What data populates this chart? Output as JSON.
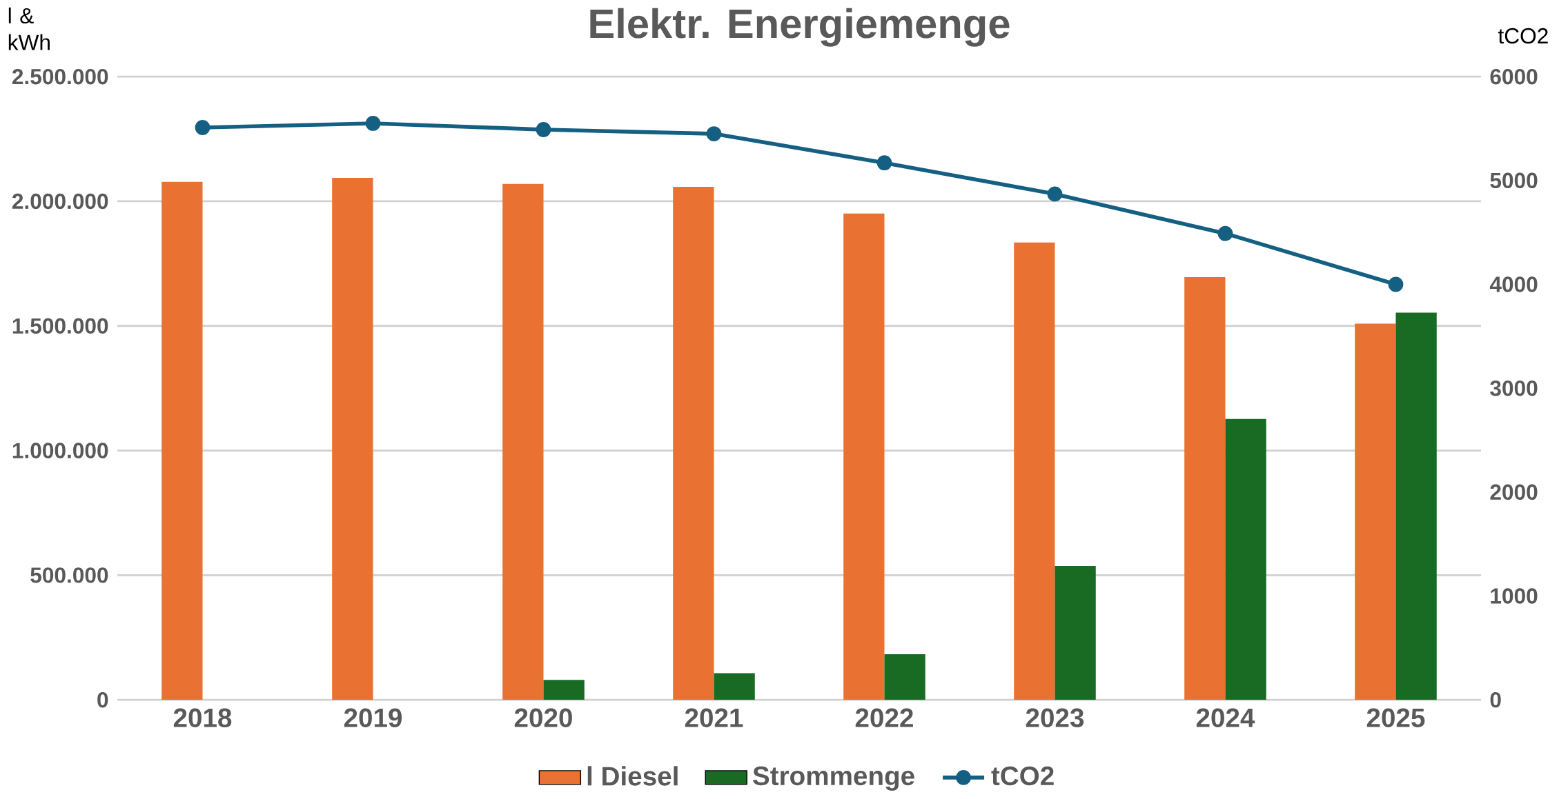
{
  "chart_data": {
    "type": "bar",
    "title": "Elektr. Energiemenge",
    "ylabel": "l & kWh",
    "y2label": "tCO2",
    "categories": [
      "2018",
      "2019",
      "2020",
      "2021",
      "2022",
      "2023",
      "2024",
      "2025"
    ],
    "series": [
      {
        "name": "l Diesel",
        "color": "#e97132",
        "values": [
          2078000,
          2094000,
          2070000,
          2058000,
          1951000,
          1835000,
          1696000,
          1509000
        ]
      },
      {
        "name": "Strommenge",
        "color": "#196b24",
        "values": [
          null,
          null,
          80000,
          107000,
          183000,
          537000,
          1127000,
          1553000
        ]
      },
      {
        "name": "tCO2",
        "type": "line",
        "axis": "y2",
        "color": "#156082",
        "marker": "circle",
        "values": [
          5510,
          5550,
          5490,
          5450,
          5170,
          4870,
          4490,
          4000
        ]
      }
    ],
    "ylim": [
      0,
      2500000
    ],
    "yticks": [
      0,
      {
        "value": 500000,
        "label": "500.000"
      },
      {
        "value": 1000000,
        "label": "1.000.000"
      },
      {
        "value": 1500000,
        "label": "1.500.000"
      },
      {
        "value": 2000000,
        "label": "2.000.000"
      },
      {
        "value": 2500000,
        "label": "2.500.000"
      }
    ],
    "y2lim": [
      0,
      6000
    ],
    "y2ticks": [
      0,
      1000,
      2000,
      3000,
      4000,
      5000,
      6000
    ],
    "grid": "y",
    "legend": "bottom"
  }
}
